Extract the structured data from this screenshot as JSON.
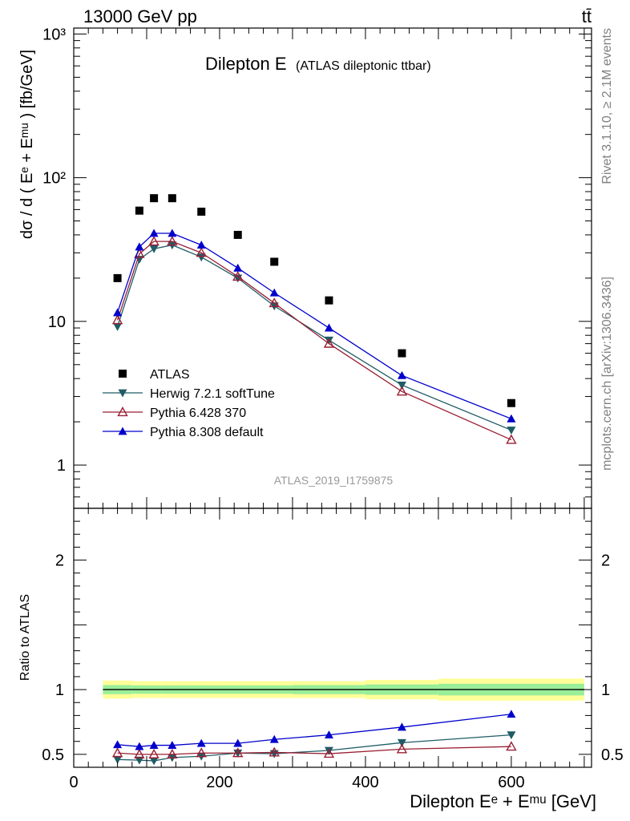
{
  "header": {
    "energy": "13000 GeV pp",
    "process": "tt̄"
  },
  "side_text": {
    "rivet": "Rivet 3.1.10, ≥ 2.1M events",
    "mcplots": "mcplots.cern.ch [arXiv:1306.3436]"
  },
  "chart_data": [
    {
      "type": "scatter",
      "title": "Dilepton E",
      "subtitle": "(ATLAS dileptonic ttbar)",
      "watermark": "ATLAS_2019_I1759875",
      "ylabel": "dσ / d ( Eᵉ + Eᵐᵘ ) [fb/GeV]",
      "xlabel": "",
      "xlim": [
        0,
        710
      ],
      "ylim": [
        0.5,
        1100
      ],
      "yscale": "log",
      "ytick_labels": [
        "1",
        "10",
        "10²",
        "10³"
      ],
      "legend_position": "lower-left",
      "grid": false,
      "series": [
        {
          "name": "ATLAS",
          "style": "data",
          "color": "#000000",
          "marker": "square",
          "x": [
            60,
            90,
            110,
            135,
            175,
            225,
            275,
            350,
            450,
            600
          ],
          "y": [
            20,
            59,
            72,
            72,
            58,
            40,
            26,
            14,
            6,
            2.7
          ]
        },
        {
          "name": "Herwig 7.2.1 softTune",
          "style": "mc",
          "color": "#1f5c66",
          "marker": "triangle-down",
          "x": [
            60,
            90,
            110,
            135,
            175,
            225,
            275,
            350,
            450,
            600
          ],
          "y": [
            9.2,
            27,
            32,
            34,
            28,
            20,
            12.8,
            7.4,
            3.6,
            1.75
          ]
        },
        {
          "name": "Pythia 6.428 370",
          "style": "mc",
          "color": "#991f33",
          "marker": "triangle-up-open",
          "x": [
            60,
            90,
            110,
            135,
            175,
            225,
            275,
            350,
            450,
            600
          ],
          "y": [
            10.2,
            29.5,
            36,
            36,
            30,
            20.5,
            13.4,
            7.0,
            3.25,
            1.5
          ]
        },
        {
          "name": "Pythia 8.308 default",
          "style": "mc",
          "color": "#0000cc",
          "marker": "triangle-up",
          "x": [
            60,
            90,
            110,
            135,
            175,
            225,
            275,
            350,
            450,
            600
          ],
          "y": [
            11.5,
            33,
            41,
            41,
            34,
            23.5,
            15.8,
            9.0,
            4.2,
            2.1
          ]
        }
      ]
    },
    {
      "type": "line",
      "ylabel": "Ratio to ATLAS",
      "xlabel": "Dilepton Eᵉ + Eᵐᵘ [GeV]",
      "xlim": [
        0,
        710
      ],
      "ylim": [
        0.4,
        2.4
      ],
      "xtick_labels": [
        "0",
        "200",
        "400",
        "600"
      ],
      "ytick_labels": [
        "0.5",
        "1",
        "2"
      ],
      "band_edges": [
        40,
        80,
        100,
        120,
        150,
        200,
        250,
        300,
        400,
        500,
        700
      ],
      "band_outer": [
        0.07,
        0.065,
        0.065,
        0.065,
        0.065,
        0.065,
        0.065,
        0.065,
        0.075,
        0.085
      ],
      "band_inner": [
        0.035,
        0.032,
        0.032,
        0.032,
        0.032,
        0.032,
        0.032,
        0.035,
        0.04,
        0.045
      ],
      "series": [
        {
          "name": "Herwig 7.2.1 softTune",
          "color": "#1f5c66",
          "marker": "triangle-down",
          "x": [
            60,
            90,
            110,
            135,
            175,
            225,
            275,
            350,
            450,
            600
          ],
          "y": [
            0.46,
            0.455,
            0.45,
            0.475,
            0.485,
            0.51,
            0.505,
            0.53,
            0.59,
            0.65
          ]
        },
        {
          "name": "Pythia 6.428 370",
          "color": "#991f33",
          "marker": "triangle-up-open",
          "x": [
            60,
            90,
            110,
            135,
            175,
            225,
            275,
            350,
            450,
            600
          ],
          "y": [
            0.51,
            0.5,
            0.5,
            0.5,
            0.51,
            0.51,
            0.515,
            0.505,
            0.54,
            0.56
          ]
        },
        {
          "name": "Pythia 8.308 default",
          "color": "#0000cc",
          "marker": "triangle-up",
          "x": [
            60,
            90,
            110,
            135,
            175,
            225,
            275,
            350,
            450,
            600
          ],
          "y": [
            0.575,
            0.56,
            0.57,
            0.57,
            0.585,
            0.585,
            0.615,
            0.65,
            0.71,
            0.81
          ]
        }
      ]
    }
  ]
}
